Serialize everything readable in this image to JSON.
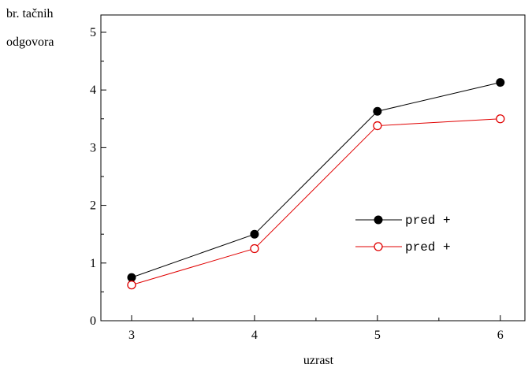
{
  "chart_data": {
    "type": "line",
    "xlabel": "uzrast",
    "ylabel_lines": [
      "br. tačnih",
      "odgovora"
    ],
    "x": [
      3,
      4,
      5,
      6
    ],
    "xlim": [
      2.75,
      6.2
    ],
    "ylim": [
      0,
      5.3
    ],
    "xticks": [
      3,
      4,
      5,
      6
    ],
    "yticks": [
      0,
      1,
      2,
      3,
      4,
      5
    ],
    "grid": false,
    "legend_position": "center-right",
    "series": [
      {
        "name": "pred +",
        "values": [
          0.75,
          1.5,
          3.63,
          4.13
        ],
        "color": "#000000",
        "marker": "filled-circle"
      },
      {
        "name": "pred +",
        "values": [
          0.62,
          1.25,
          3.38,
          3.5
        ],
        "color": "#e00000",
        "marker": "open-circle"
      }
    ]
  }
}
